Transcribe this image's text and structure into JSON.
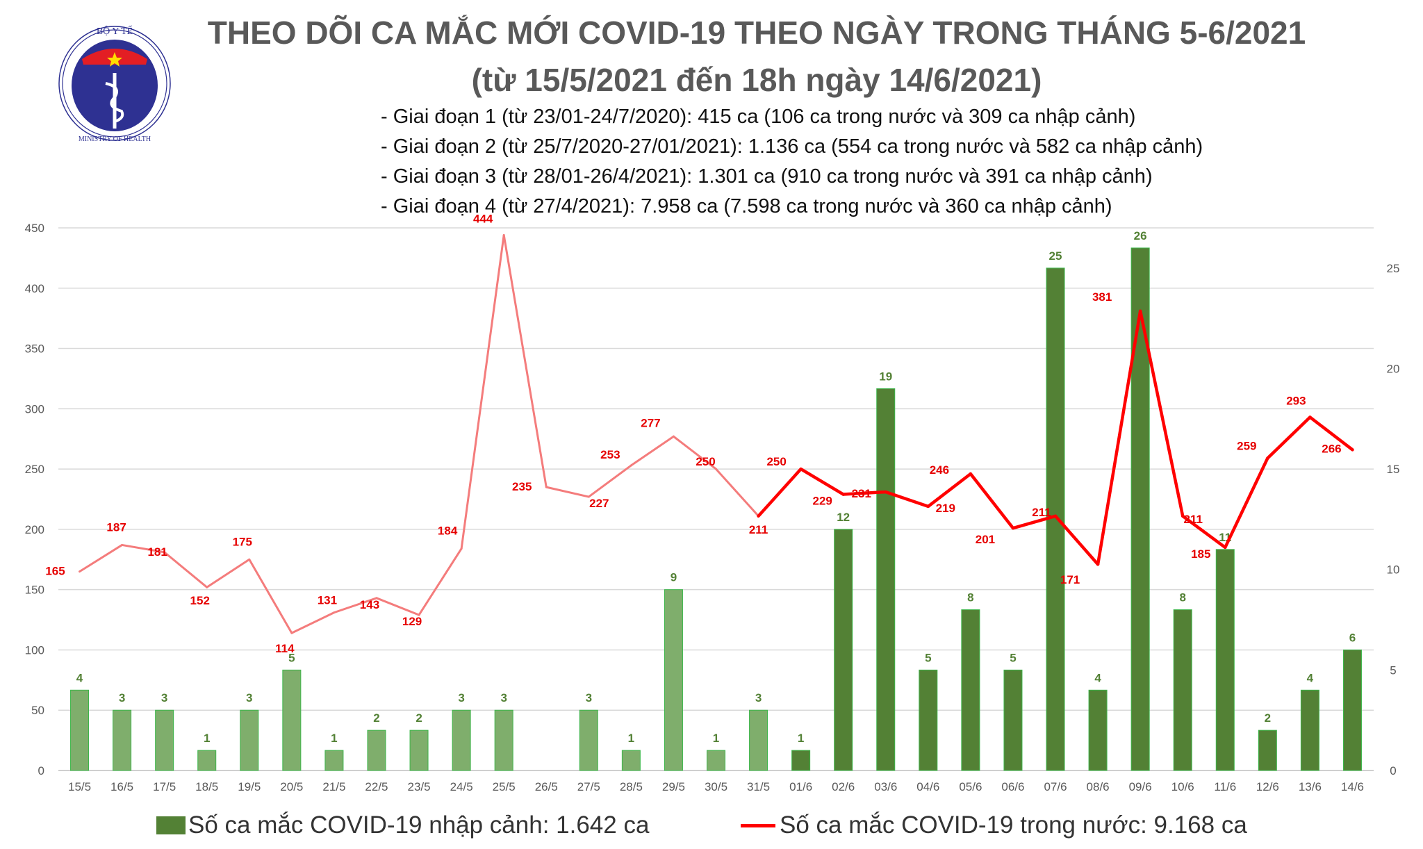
{
  "header": {
    "title_line1": "THEO DÕI CA MẮC MỚI COVID-19 THEO NGÀY TRONG THÁNG 5-6/2021",
    "title_line2": "(từ 15/5/2021 đến 18h ngày 14/6/2021)",
    "notes": [
      "- Giai đoạn 1 (từ 23/01-24/7/2020): 415 ca (106 ca trong nước và 309 ca nhập cảnh)",
      "- Giai đoạn 2 (từ 25/7/2020-27/01/2021): 1.136 ca (554 ca trong nước và 582 ca nhập cảnh)",
      "- Giai đoạn 3 (từ 28/01-26/4/2021): 1.301 ca (910 ca trong nước và 391 ca nhập cảnh)",
      "- Giai đoạn 4 (từ 27/4/2021): 7.958 ca (7.598 ca trong nước và 360 ca nhập cảnh)"
    ]
  },
  "logo": {
    "text_top": "BỘ Y TẾ",
    "text_bottom": "MINISTRY OF HEALTH"
  },
  "chart_data": {
    "type": "bar+line",
    "categories": [
      "15/5",
      "16/5",
      "17/5",
      "18/5",
      "19/5",
      "20/5",
      "21/5",
      "22/5",
      "23/5",
      "24/5",
      "25/5",
      "26/5",
      "27/5",
      "28/5",
      "29/5",
      "30/5",
      "31/5",
      "01/6",
      "02/6",
      "03/6",
      "04/6",
      "05/6",
      "06/6",
      "07/6",
      "08/6",
      "09/6",
      "10/6",
      "11/6",
      "12/6",
      "13/6",
      "14/6"
    ],
    "series": [
      {
        "name": "Số ca mắc COVID-19 nhập cảnh: 1.642 ca",
        "type": "bar",
        "axis": "right",
        "values": [
          4,
          3,
          3,
          1,
          3,
          5,
          1,
          2,
          2,
          3,
          3,
          null,
          3,
          1,
          9,
          1,
          3,
          1,
          12,
          19,
          5,
          8,
          5,
          25,
          4,
          26,
          8,
          11,
          2,
          4,
          6
        ],
        "color_early": "#7fae6c",
        "color": "#538135"
      },
      {
        "name": "Số ca mắc COVID-19 trong nước: 9.168 ca",
        "type": "line",
        "axis": "left",
        "values": [
          165,
          187,
          181,
          152,
          175,
          114,
          131,
          143,
          129,
          184,
          444,
          235,
          227,
          253,
          277,
          250,
          211,
          250,
          229,
          231,
          219,
          246,
          201,
          211,
          171,
          381,
          211,
          185,
          259,
          293,
          266
        ],
        "color_early": "#f47c7c",
        "color": "#ff0000"
      }
    ],
    "y_left": {
      "lim": [
        0,
        450
      ],
      "ticks": [
        0,
        50,
        100,
        150,
        200,
        250,
        300,
        350,
        400,
        450
      ]
    },
    "y_right": {
      "lim": [
        0,
        27
      ],
      "ticks": [
        0,
        5,
        10,
        15,
        20,
        25
      ]
    },
    "grid": true,
    "legend": "bottom",
    "label_color_bar": "#538135",
    "label_color_line": "#e60000"
  }
}
